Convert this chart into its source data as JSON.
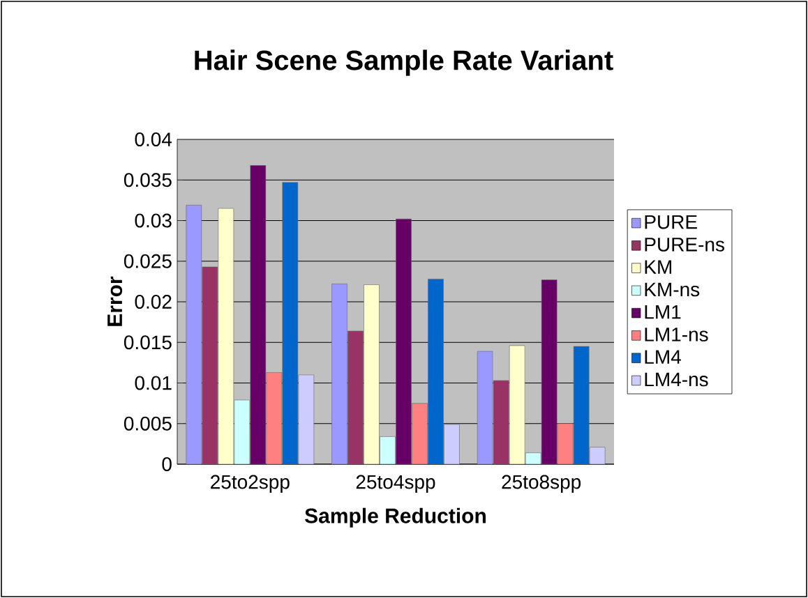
{
  "chart_data": {
    "type": "bar",
    "title": "Hair Scene Sample Rate Variant",
    "xlabel": "Sample Reduction",
    "ylabel": "Error",
    "categories": [
      "25to2spp",
      "25to4spp",
      "25to8spp"
    ],
    "series": [
      {
        "name": "PURE",
        "color": "#9999ff",
        "values": [
          0.0319,
          0.0222,
          0.0139
        ]
      },
      {
        "name": "PURE-ns",
        "color": "#993366",
        "values": [
          0.0243,
          0.0164,
          0.0103
        ]
      },
      {
        "name": "KM",
        "color": "#ffffcc",
        "values": [
          0.0315,
          0.0221,
          0.0146
        ]
      },
      {
        "name": "KM-ns",
        "color": "#ccffff",
        "values": [
          0.0079,
          0.0034,
          0.0014
        ]
      },
      {
        "name": "LM1",
        "color": "#660066",
        "values": [
          0.0368,
          0.0302,
          0.0227
        ]
      },
      {
        "name": "LM1-ns",
        "color": "#ff8080",
        "values": [
          0.0113,
          0.0075,
          0.005
        ]
      },
      {
        "name": "LM4",
        "color": "#0066cc",
        "values": [
          0.0347,
          0.0228,
          0.0145
        ]
      },
      {
        "name": "LM4-ns",
        "color": "#ccccff",
        "values": [
          0.011,
          0.0049,
          0.0021
        ]
      }
    ],
    "ylim": [
      0,
      0.04
    ],
    "yticks": [
      0,
      0.005,
      0.01,
      0.015,
      0.02,
      0.025,
      0.03,
      0.035,
      0.04
    ],
    "grid": "y",
    "legend": "right"
  }
}
